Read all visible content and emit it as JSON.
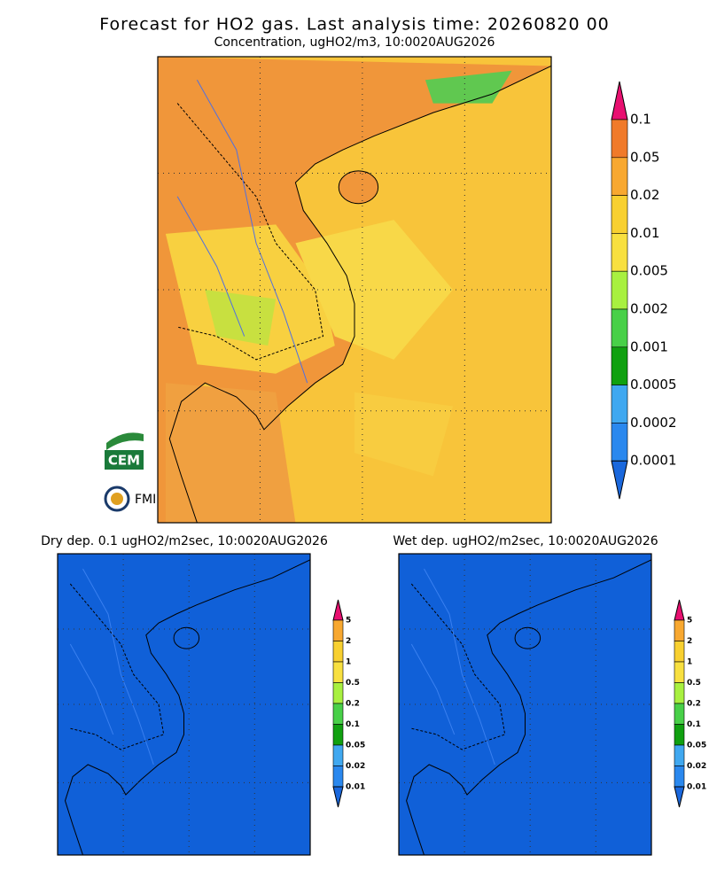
{
  "header": {
    "title": "Forecast for HO2 gas. Last analysis time: 20260820 00",
    "subtitle": "Concentration, ugHO2/m3, 10:0020AUG2026"
  },
  "main_colorbar": {
    "labels": [
      "0.1",
      "0.05",
      "0.02",
      "0.01",
      "0.005",
      "0.002",
      "0.001",
      "0.0005",
      "0.0002",
      "0.0001"
    ]
  },
  "panels": [
    {
      "title": "Dry dep. 0.1 ugHO2/m2sec, 10:0020AUG2026",
      "colorbar": {
        "labels": [
          "5",
          "2",
          "1",
          "0.5",
          "0.2",
          "0.1",
          "0.05",
          "0.02",
          "0.01"
        ]
      }
    },
    {
      "title": "Wet dep. ugHO2/m2sec, 10:0020AUG2026",
      "colorbar": {
        "labels": [
          "5",
          "2",
          "1",
          "0.5",
          "0.2",
          "0.1",
          "0.05",
          "0.02",
          "0.01"
        ]
      }
    }
  ],
  "logos": [
    "CEM",
    "FMI"
  ]
}
